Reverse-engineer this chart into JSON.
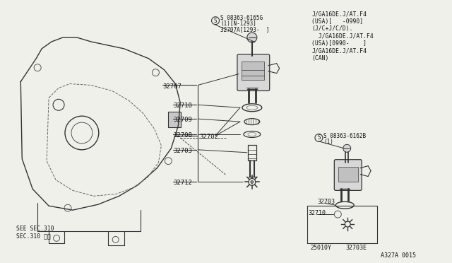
{
  "bg_color": "#f0f0eb",
  "diagram_id": "A327A 0015",
  "parts": {
    "screw_label1_line1": "S 08363-6165G",
    "screw_label1_line2": "(1)[N-1293]",
    "screw_label1_line3": "32707A[1293-  ]",
    "screw_label2_line1": "S 08363-6162B",
    "screw_label2_line2": "(1)",
    "note_text": "J/GA16DE.J/AT.F4\n(USA)[   -0990]\n(J/C+J/C/D).\n  J/GA16DE.J/AT.F4\n(USA)[0990-    ]\nJ/GA16DE.J/AT.F4\n(CAN)",
    "see_sec": "SEE SEC.310\nSEC.310 参組",
    "part_labels_left": [
      "32707",
      "32710",
      "32709",
      "32708",
      "32703",
      "32712"
    ],
    "part_label_assembly": "32702",
    "bottom_label1": "25010Y",
    "bottom_label2": "32710",
    "bottom_label3": "32703",
    "bottom_label4": "32703E"
  },
  "colors": {
    "line": "#333333",
    "fill_light": "#d8d8d8",
    "fill_mid": "#bbbbbb",
    "text": "#111111"
  }
}
